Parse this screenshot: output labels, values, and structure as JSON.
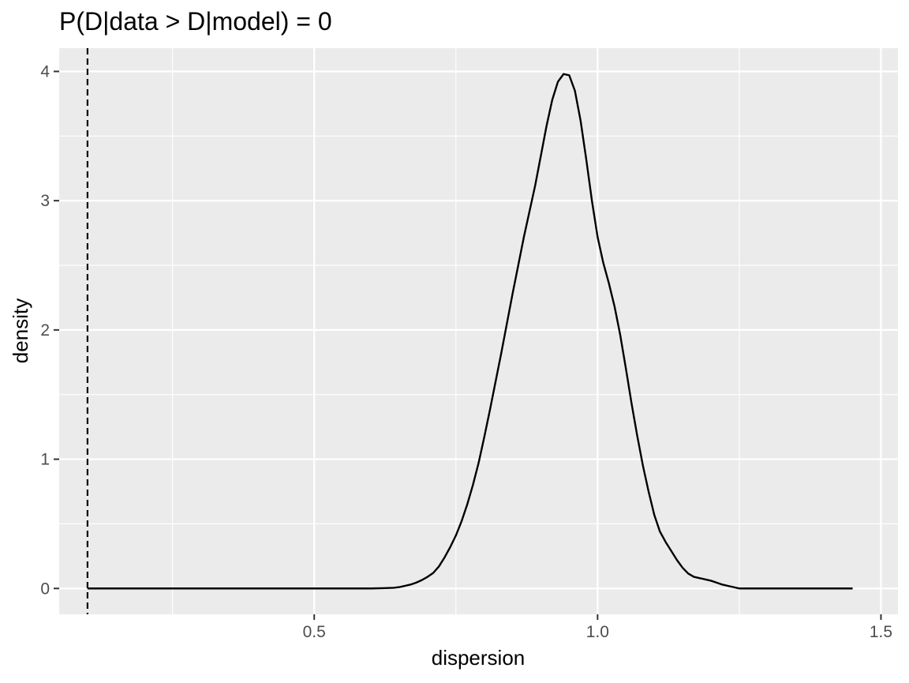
{
  "chart_data": {
    "type": "line",
    "title": "P(D|data > D|model) = 0",
    "xlabel": "dispersion",
    "ylabel": "density",
    "xlim": [
      0.05,
      1.53
    ],
    "ylim": [
      -0.2,
      4.18
    ],
    "x_ticks": [
      {
        "value": 0.5,
        "label": "0.5"
      },
      {
        "value": 1.0,
        "label": "1.0"
      },
      {
        "value": 1.5,
        "label": "1.5"
      }
    ],
    "x_minor_ticks": [
      0.25,
      0.75,
      1.25
    ],
    "y_ticks": [
      {
        "value": 0,
        "label": "0"
      },
      {
        "value": 1,
        "label": "1"
      },
      {
        "value": 2,
        "label": "2"
      },
      {
        "value": 3,
        "label": "3"
      },
      {
        "value": 4,
        "label": "4"
      }
    ],
    "y_minor_ticks": [
      0.5,
      1.5,
      2.5,
      3.5
    ],
    "grid": true,
    "panel_background": "#ebebeb",
    "grid_color": "#ffffff",
    "line_color": "#000000",
    "observed_value": 0.1,
    "observed_line_style": "dashed",
    "series": [
      {
        "x": [
          0.1,
          0.55,
          0.6,
          0.62,
          0.64,
          0.65,
          0.66,
          0.67,
          0.68,
          0.69,
          0.7,
          0.71,
          0.72,
          0.73,
          0.74,
          0.75,
          0.76,
          0.77,
          0.78,
          0.79,
          0.8,
          0.81,
          0.82,
          0.83,
          0.84,
          0.85,
          0.86,
          0.87,
          0.88,
          0.89,
          0.9,
          0.91,
          0.92,
          0.93,
          0.94,
          0.95,
          0.96,
          0.97,
          0.98,
          0.99,
          1.0,
          1.01,
          1.02,
          1.03,
          1.04,
          1.05,
          1.06,
          1.07,
          1.08,
          1.09,
          1.1,
          1.11,
          1.12,
          1.13,
          1.14,
          1.15,
          1.16,
          1.17,
          1.18,
          1.19,
          1.2,
          1.21,
          1.22,
          1.23,
          1.24,
          1.25,
          1.26,
          1.27,
          1.28,
          1.29,
          1.3,
          1.31,
          1.32,
          1.33,
          1.34,
          1.35,
          1.36,
          1.37,
          1.38,
          1.39,
          1.4,
          1.42,
          1.45
        ],
        "y": [
          0.0,
          0.0,
          0.0,
          0.002,
          0.005,
          0.01,
          0.02,
          0.03,
          0.045,
          0.065,
          0.09,
          0.12,
          0.17,
          0.24,
          0.32,
          0.41,
          0.52,
          0.65,
          0.8,
          0.97,
          1.17,
          1.38,
          1.6,
          1.82,
          2.05,
          2.28,
          2.5,
          2.72,
          2.92,
          3.12,
          3.35,
          3.58,
          3.78,
          3.92,
          3.98,
          3.97,
          3.85,
          3.62,
          3.32,
          3.0,
          2.72,
          2.52,
          2.36,
          2.18,
          1.96,
          1.7,
          1.43,
          1.18,
          0.95,
          0.75,
          0.57,
          0.44,
          0.36,
          0.29,
          0.22,
          0.16,
          0.115,
          0.09,
          0.08,
          0.07,
          0.06,
          0.045,
          0.03,
          0.02,
          0.01,
          0.0,
          0.0,
          0.0,
          0.0,
          0.0,
          0.0,
          0.0,
          0.0,
          0.0,
          0.0,
          0.0,
          0.0,
          0.0,
          0.0,
          0.0,
          0.0,
          0.0,
          0.0
        ],
        "note": ""
      }
    ]
  }
}
